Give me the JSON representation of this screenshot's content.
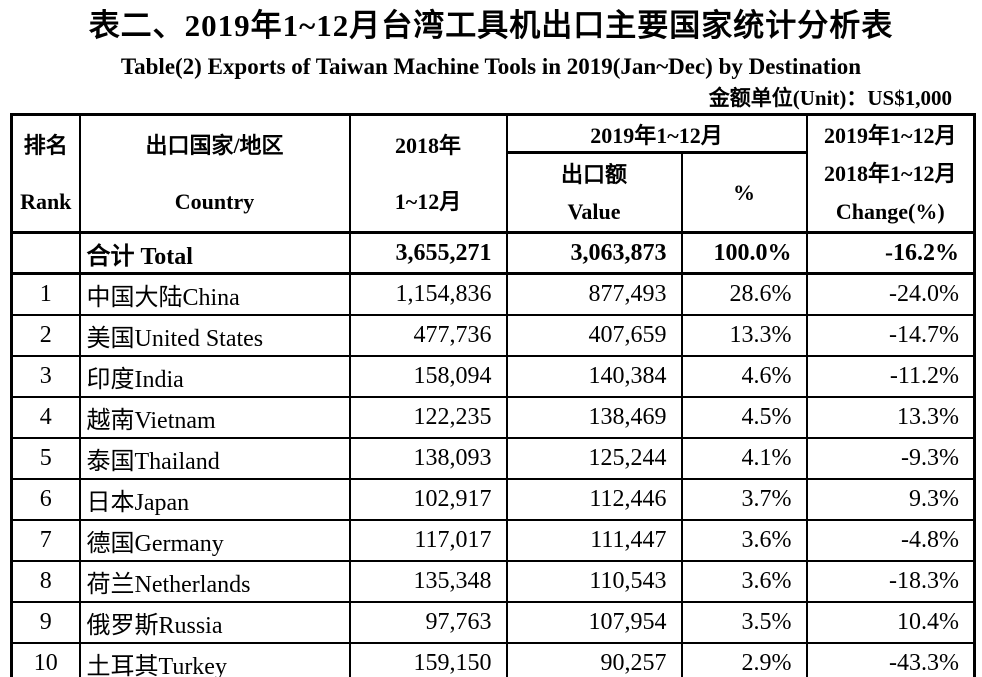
{
  "page": {
    "title_zh": "表二、2019年1~12月台湾工具机出口主要国家统计分析表",
    "title_en": "Table(2) Exports of Taiwan  Machine Tools in 2019(Jan~Dec) by Destination",
    "unit_label": "金额单位(Unit)：US$1,000"
  },
  "colors": {
    "text": "#000000",
    "border": "#000000",
    "background": "#ffffff"
  },
  "table": {
    "header": {
      "rank_zh": "排名",
      "rank_en": "Rank",
      "country_zh": "出口国家/地区",
      "country_en": "Country",
      "y2018_line1": "2018年",
      "y2018_line2": "1~12月",
      "y2019_group": "2019年1~12月",
      "value_zh": "出口额",
      "value_en": "Value",
      "pct": "%",
      "change_line1": "2019年1~12月",
      "change_line2": "2018年1~12月",
      "change_line3": "Change(%)"
    },
    "total_row": {
      "rank": "",
      "country": "合计 Total",
      "y2018": "3,655,271",
      "value": "3,063,873",
      "pct": "100.0%",
      "change": "-16.2%"
    },
    "rows": [
      {
        "rank": "1",
        "country": "中国大陆China",
        "y2018": "1,154,836",
        "value": "877,493",
        "pct": "28.6%",
        "change": "-24.0%"
      },
      {
        "rank": "2",
        "country": "美国United States",
        "y2018": "477,736",
        "value": "407,659",
        "pct": "13.3%",
        "change": "-14.7%"
      },
      {
        "rank": "3",
        "country": "印度India",
        "y2018": "158,094",
        "value": "140,384",
        "pct": "4.6%",
        "change": "-11.2%"
      },
      {
        "rank": "4",
        "country": "越南Vietnam",
        "y2018": "122,235",
        "value": "138,469",
        "pct": "4.5%",
        "change": "13.3%"
      },
      {
        "rank": "5",
        "country": "泰国Thailand",
        "y2018": "138,093",
        "value": "125,244",
        "pct": "4.1%",
        "change": "-9.3%"
      },
      {
        "rank": "6",
        "country": "日本Japan",
        "y2018": "102,917",
        "value": "112,446",
        "pct": "3.7%",
        "change": "9.3%"
      },
      {
        "rank": "7",
        "country": "德国Germany",
        "y2018": "117,017",
        "value": "111,447",
        "pct": "3.6%",
        "change": "-4.8%"
      },
      {
        "rank": "8",
        "country": "荷兰Netherlands",
        "y2018": "135,348",
        "value": "110,543",
        "pct": "3.6%",
        "change": "-18.3%"
      },
      {
        "rank": "9",
        "country": "俄罗斯Russia",
        "y2018": "97,763",
        "value": "107,954",
        "pct": "3.5%",
        "change": "10.4%"
      },
      {
        "rank": "10",
        "country": "土耳其Turkey",
        "y2018": "159,150",
        "value": "90,257",
        "pct": "2.9%",
        "change": "-43.3%"
      }
    ]
  }
}
